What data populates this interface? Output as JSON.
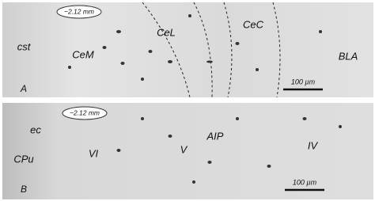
{
  "panels": [
    {
      "letter": "A",
      "depth": "−2.12 mm",
      "scale_bar": "100 µm",
      "regions": [
        "cst",
        "CeM",
        "CeL",
        "CeC",
        "BLA"
      ]
    },
    {
      "letter": "B",
      "depth": "−2.12 mm",
      "scale_bar": "100 µm",
      "regions": [
        "ec",
        "CPu",
        "VI",
        "V",
        "AIP",
        "IV"
      ]
    }
  ]
}
